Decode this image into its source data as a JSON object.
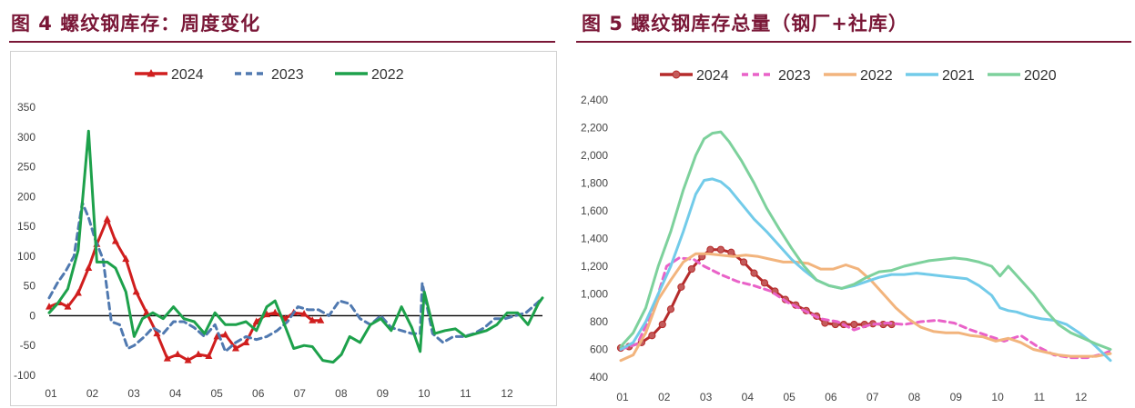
{
  "left": {
    "title": "图 4  螺纹钢库存：周度变化",
    "chart_data": {
      "type": "line",
      "title": "",
      "xlabel": "",
      "ylabel": "",
      "ylim": [
        -100,
        350
      ],
      "yticks": [
        -100,
        -50,
        0,
        50,
        100,
        150,
        200,
        250,
        300,
        350
      ],
      "xlim": [
        1,
        12.9
      ],
      "xticks": [
        "01",
        "02",
        "03",
        "04",
        "05",
        "06",
        "07",
        "08",
        "09",
        "10",
        "11",
        "12"
      ],
      "legend_position": "top-center",
      "grid": false,
      "series": [
        {
          "name": "2024",
          "color": "#d01e1e",
          "style": "solid-triangle",
          "x": [
            1.0,
            1.25,
            1.45,
            1.7,
            1.95,
            2.15,
            2.4,
            2.6,
            2.85,
            3.1,
            3.35,
            3.6,
            3.85,
            4.1,
            4.35,
            4.6,
            4.85,
            5.05,
            5.25,
            5.5,
            5.75,
            6.0,
            6.25,
            6.45,
            6.7,
            6.9,
            7.15,
            7.35,
            7.55
          ],
          "y": [
            15,
            22,
            15,
            38,
            80,
            120,
            162,
            125,
            95,
            40,
            5,
            -30,
            -72,
            -65,
            -75,
            -65,
            -68,
            -35,
            -32,
            -55,
            -45,
            -10,
            2,
            5,
            -5,
            5,
            3,
            -8,
            -8
          ]
        },
        {
          "name": "2023",
          "color": "#5079b0",
          "style": "dashed",
          "x": [
            1.0,
            1.2,
            1.4,
            1.6,
            1.8,
            1.95,
            2.1,
            2.3,
            2.5,
            2.7,
            2.9,
            3.05,
            3.3,
            3.5,
            3.75,
            4.0,
            4.25,
            4.5,
            4.75,
            5.0,
            5.25,
            5.5,
            5.75,
            6.0,
            6.25,
            6.5,
            6.75,
            7.0,
            7.25,
            7.5,
            7.75,
            8.0,
            8.25,
            8.5,
            8.75,
            9.0,
            9.25,
            9.5,
            9.75,
            9.95,
            10.0,
            10.25,
            10.5,
            10.75,
            11.0,
            11.25,
            11.5,
            11.75,
            12.0,
            12.25,
            12.5,
            12.75,
            12.9
          ],
          "y": [
            30,
            55,
            75,
            100,
            190,
            165,
            130,
            95,
            -10,
            -15,
            -55,
            -50,
            -35,
            -20,
            -30,
            -10,
            -10,
            -20,
            -35,
            -15,
            -60,
            -45,
            -35,
            -40,
            -35,
            -25,
            -10,
            15,
            10,
            10,
            0,
            25,
            20,
            -5,
            -15,
            0,
            -20,
            -25,
            -30,
            -30,
            55,
            -30,
            -45,
            -35,
            -35,
            -30,
            -20,
            -5,
            -5,
            0,
            5,
            20,
            30
          ]
        },
        {
          "name": "2022",
          "color": "#1da14b",
          "style": "solid",
          "x": [
            1.0,
            1.2,
            1.45,
            1.7,
            1.95,
            2.15,
            2.4,
            2.6,
            2.85,
            3.05,
            3.25,
            3.5,
            3.75,
            4.0,
            4.25,
            4.5,
            4.75,
            5.0,
            5.25,
            5.5,
            5.75,
            6.0,
            6.25,
            6.45,
            6.65,
            6.9,
            7.15,
            7.35,
            7.6,
            7.85,
            8.05,
            8.25,
            8.5,
            8.75,
            9.0,
            9.25,
            9.5,
            9.75,
            9.95,
            10.05,
            10.3,
            10.55,
            10.8,
            11.05,
            11.3,
            11.55,
            11.8,
            12.05,
            12.3,
            12.55,
            12.8,
            12.9
          ],
          "y": [
            5,
            20,
            45,
            110,
            310,
            90,
            90,
            80,
            40,
            -35,
            -5,
            5,
            -5,
            15,
            -5,
            -10,
            -30,
            5,
            -15,
            -15,
            -10,
            -25,
            15,
            25,
            -10,
            -55,
            -50,
            -52,
            -75,
            -78,
            -65,
            -35,
            -45,
            -15,
            -5,
            -25,
            15,
            -20,
            -60,
            40,
            -30,
            -25,
            -22,
            -35,
            -30,
            -25,
            -15,
            5,
            5,
            -15,
            20,
            30
          ]
        }
      ]
    }
  },
  "right": {
    "title": "图 5  螺纹钢库存总量（钢厂+社库）",
    "chart_data": {
      "type": "line",
      "title": "",
      "xlabel": "",
      "ylabel": "",
      "ylim": [
        400,
        2400
      ],
      "yticks": [
        "400",
        "600",
        "800",
        "1,000",
        "1,200",
        "1,400",
        "1,600",
        "1,800",
        "2,000",
        "2,200",
        "2,400"
      ],
      "xlim": [
        1,
        12.75
      ],
      "xticks": [
        "01",
        "02",
        "03",
        "04",
        "05",
        "06",
        "07",
        "08",
        "09",
        "10",
        "11",
        "12"
      ],
      "legend_position": "top-center",
      "grid": false,
      "series": [
        {
          "name": "2024",
          "color": "#b52b2b",
          "style": "solid-circle",
          "x": [
            1.0,
            1.2,
            1.5,
            1.75,
            2.0,
            2.2,
            2.45,
            2.7,
            2.95,
            3.15,
            3.4,
            3.65,
            3.95,
            4.2,
            4.45,
            4.7,
            4.95,
            5.2,
            5.45,
            5.7,
            5.9,
            6.15,
            6.35,
            6.6,
            6.85,
            7.05,
            7.3,
            7.5
          ],
          "y": [
            610,
            620,
            650,
            700,
            780,
            890,
            1050,
            1180,
            1270,
            1320,
            1320,
            1300,
            1230,
            1150,
            1080,
            1020,
            960,
            920,
            880,
            840,
            790,
            780,
            780,
            780,
            780,
            785,
            780,
            780
          ]
        },
        {
          "name": "2023",
          "color": "#e962c8",
          "style": "dashed",
          "x": [
            1.0,
            1.4,
            1.8,
            2.1,
            2.4,
            2.75,
            3.0,
            3.4,
            3.8,
            4.2,
            4.6,
            5.0,
            5.4,
            5.8,
            6.2,
            6.6,
            7.0,
            7.4,
            7.8,
            8.2,
            8.6,
            9.0,
            9.4,
            9.8,
            10.2,
            10.6,
            11.0,
            11.4,
            11.8,
            12.2,
            12.6,
            12.75
          ],
          "y": [
            600,
            640,
            900,
            1200,
            1260,
            1250,
            1200,
            1140,
            1090,
            1060,
            1020,
            940,
            880,
            820,
            800,
            740,
            780,
            790,
            780,
            800,
            810,
            790,
            740,
            700,
            660,
            700,
            620,
            560,
            540,
            540,
            570,
            590
          ]
        },
        {
          "name": "2022",
          "color": "#f2b47d",
          "style": "solid",
          "x": [
            1.0,
            1.3,
            1.6,
            1.9,
            2.2,
            2.5,
            2.8,
            3.1,
            3.4,
            3.7,
            4.0,
            4.3,
            4.6,
            4.9,
            5.2,
            5.5,
            5.8,
            6.1,
            6.4,
            6.7,
            7.0,
            7.3,
            7.6,
            7.9,
            8.2,
            8.5,
            8.8,
            9.1,
            9.4,
            9.7,
            10.0,
            10.3,
            10.6,
            10.9,
            11.2,
            11.5,
            11.8,
            12.1,
            12.4,
            12.75
          ],
          "y": [
            520,
            560,
            720,
            960,
            1100,
            1230,
            1290,
            1290,
            1280,
            1270,
            1280,
            1270,
            1250,
            1230,
            1230,
            1220,
            1180,
            1180,
            1210,
            1180,
            1100,
            1000,
            900,
            820,
            760,
            730,
            720,
            720,
            700,
            690,
            660,
            680,
            650,
            600,
            580,
            560,
            550,
            550,
            550,
            570
          ]
        },
        {
          "name": "2021",
          "color": "#72cbe9",
          "style": "solid",
          "x": [
            1.0,
            1.3,
            1.6,
            1.9,
            2.2,
            2.5,
            2.8,
            3.0,
            3.2,
            3.4,
            3.6,
            3.9,
            4.2,
            4.5,
            4.8,
            5.1,
            5.4,
            5.7,
            6.0,
            6.3,
            6.6,
            6.9,
            7.2,
            7.5,
            7.8,
            8.1,
            8.4,
            8.7,
            9.0,
            9.3,
            9.6,
            9.9,
            10.1,
            10.3,
            10.5,
            10.8,
            11.1,
            11.4,
            11.7,
            12.0,
            12.3,
            12.75
          ],
          "y": [
            600,
            650,
            800,
            1000,
            1200,
            1450,
            1720,
            1820,
            1830,
            1810,
            1760,
            1650,
            1540,
            1450,
            1350,
            1250,
            1170,
            1100,
            1060,
            1040,
            1060,
            1090,
            1120,
            1140,
            1140,
            1150,
            1140,
            1130,
            1120,
            1110,
            1060,
            990,
            900,
            880,
            870,
            840,
            820,
            810,
            780,
            720,
            650,
            520
          ]
        },
        {
          "name": "2020",
          "color": "#7dd19c",
          "style": "solid",
          "x": [
            1.0,
            1.3,
            1.6,
            1.9,
            2.2,
            2.5,
            2.8,
            3.0,
            3.2,
            3.4,
            3.6,
            3.9,
            4.2,
            4.5,
            4.8,
            5.1,
            5.4,
            5.7,
            6.0,
            6.3,
            6.6,
            6.9,
            7.2,
            7.5,
            7.8,
            8.1,
            8.4,
            8.7,
            9.0,
            9.3,
            9.6,
            9.9,
            10.1,
            10.3,
            10.6,
            10.9,
            11.2,
            11.5,
            11.8,
            12.1,
            12.4,
            12.75
          ],
          "y": [
            620,
            720,
            900,
            1200,
            1450,
            1750,
            2000,
            2120,
            2160,
            2170,
            2100,
            1960,
            1800,
            1620,
            1470,
            1330,
            1200,
            1100,
            1060,
            1040,
            1070,
            1120,
            1160,
            1170,
            1200,
            1220,
            1240,
            1250,
            1260,
            1250,
            1230,
            1200,
            1130,
            1200,
            1100,
            1000,
            880,
            780,
            720,
            680,
            640,
            600
          ]
        }
      ]
    }
  }
}
